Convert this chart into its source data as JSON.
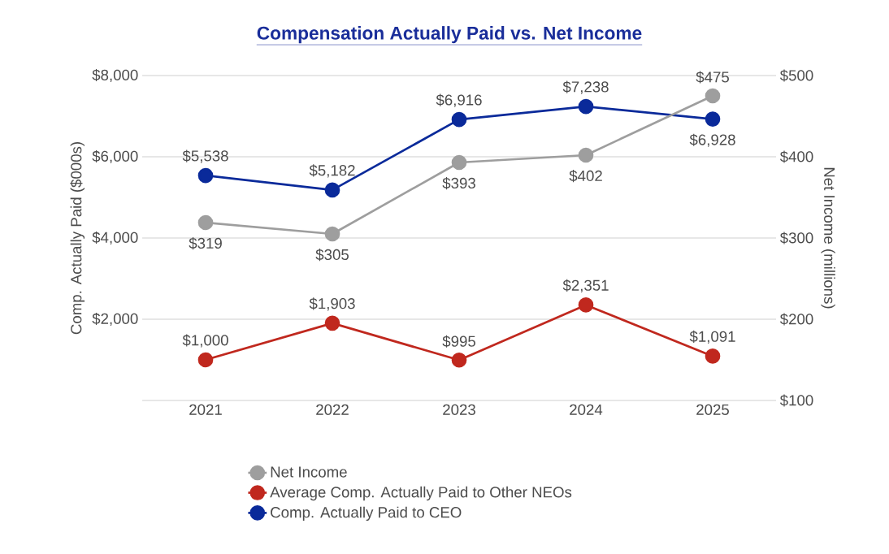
{
  "chart_data": {
    "type": "line",
    "title": "Compensation Actually Paid vs. Net Income",
    "categories": [
      "2021",
      "2022",
      "2023",
      "2024",
      "2025"
    ],
    "series": [
      {
        "name": "Net Income",
        "color": "#9e9e9e",
        "axis": "y2",
        "values": [
          319,
          305,
          393,
          402,
          475
        ],
        "value_labels": [
          "$319",
          "$305",
          "$393",
          "$402",
          "$475"
        ]
      },
      {
        "name": "Average Comp. Actually Paid to Other NEOs",
        "color": "#c0281e",
        "values": [
          1000,
          1903,
          995,
          2351,
          1091
        ],
        "value_labels": [
          "$1,000",
          "$1,903",
          "$995",
          "$2,351",
          "$1,091"
        ]
      },
      {
        "name": "Comp. Actually Paid to CEO",
        "color": "#0a2a9a",
        "values": [
          5538,
          5182,
          6916,
          7238,
          6928
        ],
        "value_labels": [
          "$5,538",
          "$5,182",
          "$6,916",
          "$7,238",
          "$6,928"
        ]
      }
    ],
    "ylabel": "Comp. Actually Paid ($000s)",
    "y2label": "Net Income (millions)",
    "ylim": [
      0,
      8000
    ],
    "yticks": [
      {
        "value": 0,
        "label": null
      },
      {
        "value": 2000,
        "label": "$2,000"
      },
      {
        "value": 4000,
        "label": "$4,000"
      },
      {
        "value": 6000,
        "label": "$6,000"
      },
      {
        "value": 8000,
        "label": "$8,000"
      }
    ],
    "y2lim": [
      100,
      500
    ],
    "y2ticks": [
      {
        "value": 100,
        "label": "$100"
      },
      {
        "value": 200,
        "label": "$200"
      },
      {
        "value": 300,
        "label": "$300"
      },
      {
        "value": 400,
        "label": "$400"
      },
      {
        "value": 500,
        "label": "$500"
      }
    ],
    "grid": "y",
    "legend": "bottom",
    "marker": "circle",
    "line_style": "solid"
  }
}
